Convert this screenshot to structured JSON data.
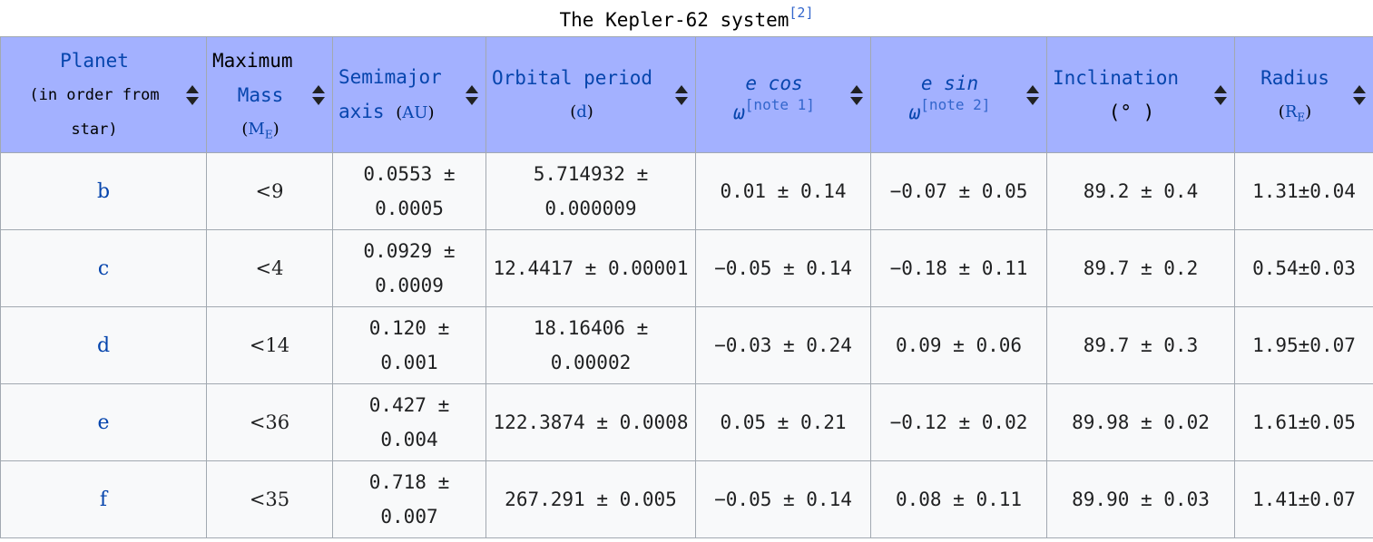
{
  "caption": {
    "title": "The Kepler-62 system",
    "ref": "[2]"
  },
  "headers": {
    "planet": {
      "line1": "Planet",
      "line2": "(in order from",
      "line3": "star)"
    },
    "mass": {
      "line1": "Maximum",
      "line2": "Mass",
      "unit": "M",
      "unit_sub": "E"
    },
    "semimajor": {
      "line1": "Semimajor",
      "line2": "axis",
      "unit": "AU"
    },
    "period": {
      "line1": "Orbital period",
      "unit": "d"
    },
    "ecos": {
      "line1": "e cos",
      "line2": "ω",
      "note": "[note 1]"
    },
    "esin": {
      "line1": "e sin",
      "line2": "ω",
      "note": "[note 2]"
    },
    "inclination": {
      "line1": "Inclination",
      "unit": "(° )"
    },
    "radius": {
      "line1": "Radius",
      "unit": "R",
      "unit_sub": "E"
    }
  },
  "rows": [
    {
      "planet": "b",
      "mass": "<9",
      "semimajor_1": "0.0553 ±",
      "semimajor_2": "0.0005",
      "period_1": "5.714932 ±",
      "period_2": "0.000009",
      "ecos": "0.01 ± 0.14",
      "esin": "−0.07 ± 0.05",
      "inclination": "89.2 ± 0.4",
      "radius": "1.31±0.04"
    },
    {
      "planet": "c",
      "mass": "<4",
      "semimajor_1": "0.0929 ±",
      "semimajor_2": "0.0009",
      "period_1": "12.4417 ± 0.00001",
      "period_2": "",
      "ecos": "−0.05 ± 0.14",
      "esin": "−0.18 ± 0.11",
      "inclination": "89.7 ± 0.2",
      "radius": "0.54±0.03"
    },
    {
      "planet": "d",
      "mass": "<14",
      "semimajor_1": "0.120 ±",
      "semimajor_2": "0.001",
      "period_1": "18.16406 ±",
      "period_2": "0.00002",
      "ecos": "−0.03 ± 0.24",
      "esin": "0.09 ± 0.06",
      "inclination": "89.7 ± 0.3",
      "radius": "1.95±0.07"
    },
    {
      "planet": "e",
      "mass": "<36",
      "semimajor_1": "0.427 ±",
      "semimajor_2": "0.004",
      "period_1": "122.3874 ± 0.0008",
      "period_2": "",
      "ecos": "0.05 ± 0.21",
      "esin": "−0.12 ± 0.02",
      "inclination": "89.98 ± 0.02",
      "radius": "1.61±0.05"
    },
    {
      "planet": "f",
      "mass": "<35",
      "semimajor_1": "0.718 ±",
      "semimajor_2": "0.007",
      "period_1": "267.291 ± 0.005",
      "period_2": "",
      "ecos": "−0.05 ± 0.14",
      "esin": "0.08 ± 0.11",
      "inclination": "89.90 ± 0.03",
      "radius": "1.41±0.07"
    }
  ]
}
